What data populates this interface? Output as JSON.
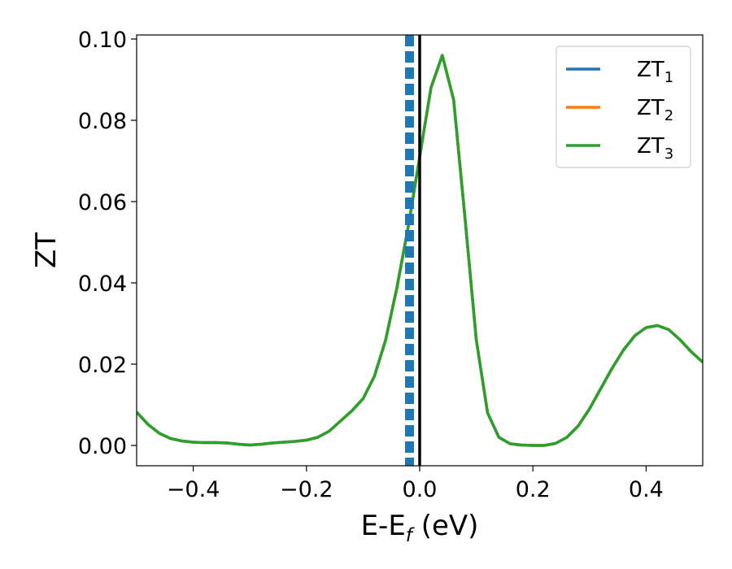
{
  "chart_data": {
    "type": "line",
    "xlabel": {
      "main": "E-E",
      "sub": "f",
      "unit": " (eV)"
    },
    "ylabel": "ZT",
    "xlim": [
      -0.5,
      0.5
    ],
    "ylim": [
      -0.005,
      0.101
    ],
    "x_ticks": [
      -0.4,
      -0.2,
      0.0,
      0.2,
      0.4
    ],
    "x_tick_labels": [
      "−0.4",
      "−0.2",
      "0.0",
      "0.2",
      "0.4"
    ],
    "y_ticks": [
      0.0,
      0.02,
      0.04,
      0.06,
      0.08,
      0.1
    ],
    "y_tick_labels": [
      "0.00",
      "0.02",
      "0.04",
      "0.06",
      "0.08",
      "0.10"
    ],
    "grid": false,
    "legend_position": "top-right",
    "vertical_lines": [
      {
        "x": -0.018,
        "color": "#1f77b4",
        "style": "dashed"
      },
      {
        "x": 0.0,
        "color": "#000000",
        "style": "solid"
      }
    ],
    "x": [
      -0.5,
      -0.48,
      -0.46,
      -0.44,
      -0.42,
      -0.4,
      -0.38,
      -0.36,
      -0.34,
      -0.32,
      -0.3,
      -0.28,
      -0.26,
      -0.24,
      -0.22,
      -0.2,
      -0.18,
      -0.16,
      -0.14,
      -0.12,
      -0.1,
      -0.08,
      -0.06,
      -0.04,
      -0.02,
      0.0,
      0.02,
      0.04,
      0.06,
      0.08,
      0.1,
      0.12,
      0.14,
      0.16,
      0.18,
      0.2,
      0.22,
      0.24,
      0.26,
      0.28,
      0.3,
      0.32,
      0.34,
      0.36,
      0.38,
      0.4,
      0.42,
      0.44,
      0.46,
      0.48,
      0.5
    ],
    "series": [
      {
        "name": "ZT",
        "sub": "1",
        "color": "#1f77b4",
        "values": [
          0.0082,
          0.0052,
          0.003,
          0.0017,
          0.0011,
          0.0008,
          0.0007,
          0.0007,
          0.0006,
          0.0003,
          0.0001,
          0.0003,
          0.0006,
          0.0008,
          0.001,
          0.0013,
          0.002,
          0.0035,
          0.006,
          0.0085,
          0.0115,
          0.017,
          0.026,
          0.039,
          0.054,
          0.071,
          0.088,
          0.096,
          0.085,
          0.056,
          0.026,
          0.008,
          0.002,
          0.0004,
          0.0001,
          0.0,
          0.0,
          0.0005,
          0.002,
          0.0048,
          0.009,
          0.014,
          0.019,
          0.0235,
          0.027,
          0.029,
          0.0295,
          0.0285,
          0.026,
          0.023,
          0.0205
        ]
      },
      {
        "name": "ZT",
        "sub": "2",
        "color": "#ff7f0e",
        "values": [
          0.0082,
          0.0052,
          0.003,
          0.0017,
          0.0011,
          0.0008,
          0.0007,
          0.0007,
          0.0006,
          0.0003,
          0.0001,
          0.0003,
          0.0006,
          0.0008,
          0.001,
          0.0013,
          0.002,
          0.0035,
          0.006,
          0.0085,
          0.0115,
          0.017,
          0.026,
          0.039,
          0.054,
          0.071,
          0.088,
          0.096,
          0.085,
          0.056,
          0.026,
          0.008,
          0.002,
          0.0004,
          0.0001,
          0.0,
          0.0,
          0.0005,
          0.002,
          0.0048,
          0.009,
          0.014,
          0.019,
          0.0235,
          0.027,
          0.029,
          0.0295,
          0.0285,
          0.026,
          0.023,
          0.0205
        ]
      },
      {
        "name": "ZT",
        "sub": "3",
        "color": "#2ca02c",
        "values": [
          0.0082,
          0.0052,
          0.003,
          0.0017,
          0.0011,
          0.0008,
          0.0007,
          0.0007,
          0.0006,
          0.0003,
          0.0001,
          0.0003,
          0.0006,
          0.0008,
          0.001,
          0.0013,
          0.002,
          0.0035,
          0.006,
          0.0085,
          0.0115,
          0.017,
          0.026,
          0.039,
          0.054,
          0.071,
          0.088,
          0.096,
          0.085,
          0.056,
          0.026,
          0.008,
          0.002,
          0.0004,
          0.0001,
          0.0,
          0.0,
          0.0005,
          0.002,
          0.0048,
          0.009,
          0.014,
          0.019,
          0.0235,
          0.027,
          0.029,
          0.0295,
          0.0285,
          0.026,
          0.023,
          0.0205
        ]
      }
    ]
  }
}
